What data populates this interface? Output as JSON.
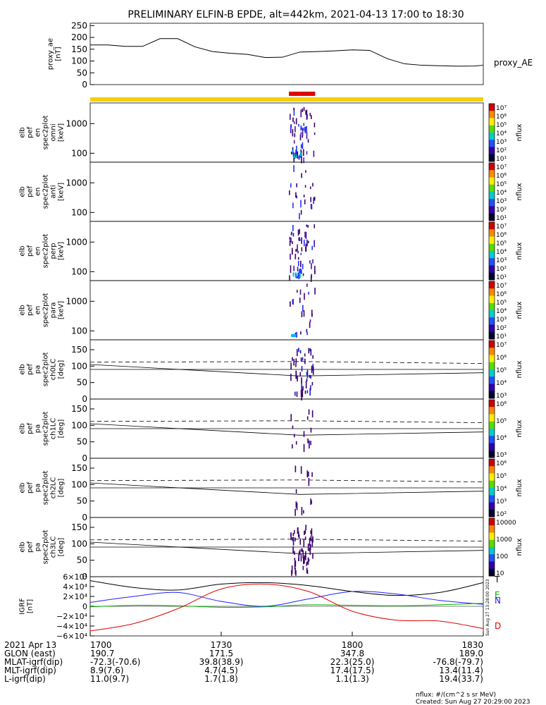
{
  "title": "PRELIMINARY ELFIN-B EPDE, alt=442km, 2021-04-13 17:00 to 18:30",
  "colors": {
    "status_bar": "#f5d000",
    "science_zone": "#e00000",
    "ae_line": "#000000",
    "grf_total": "#000000",
    "grf_n": "#2020ff",
    "grf_e": "#00b000",
    "grf_d": "#e00000"
  },
  "ae_panel": {
    "ylabel_lines": [
      "proxy_ae",
      "[nT]"
    ],
    "yticks": [
      "250",
      "200",
      "150",
      "100",
      "50",
      "0"
    ],
    "ylim": [
      0,
      260
    ],
    "legend": "proxy_AE"
  },
  "spec_panels": [
    {
      "ylabel_lines": [
        "elb",
        "pef",
        "en",
        "spec2plot",
        "omni",
        "[keV]"
      ],
      "yticks": [
        "1000",
        "100"
      ],
      "cbar_ticks": [
        "10⁷",
        "10⁶",
        "10⁵",
        "10⁴",
        "10³",
        "10²",
        "10¹"
      ],
      "cbar_label": "nflux"
    },
    {
      "ylabel_lines": [
        "elb",
        "pef",
        "en",
        "spec2plot",
        "anti",
        "[keV]"
      ],
      "yticks": [
        "1000",
        "100"
      ],
      "cbar_ticks": [
        "10⁷",
        "10⁶",
        "10⁵",
        "10⁴",
        "10³",
        "10²",
        "10¹"
      ],
      "cbar_label": "nflux"
    },
    {
      "ylabel_lines": [
        "elb",
        "pef",
        "en",
        "spec2plot",
        "perp",
        "[keV]"
      ],
      "yticks": [
        "1000",
        "100"
      ],
      "cbar_ticks": [
        "10⁷",
        "10⁶",
        "10⁵",
        "10⁴",
        "10³",
        "10²",
        "10¹"
      ],
      "cbar_label": "nflux"
    },
    {
      "ylabel_lines": [
        "elb",
        "pef",
        "en",
        "spec2plot",
        "para",
        "[keV]"
      ],
      "yticks": [
        "1000",
        "100"
      ],
      "cbar_ticks": [
        "10⁷",
        "10⁶",
        "10⁵",
        "10⁴",
        "10³",
        "10²",
        "10¹"
      ],
      "cbar_label": "nflux"
    }
  ],
  "pa_panels": [
    {
      "ylabel_lines": [
        "elb",
        "pef",
        "pa",
        "spec2plot",
        "ch0LC",
        "[deg]"
      ],
      "yticks": [
        "150",
        "100",
        "50",
        "0"
      ],
      "cbar_ticks": [
        "10⁷",
        "10⁶",
        "10⁵",
        "10⁴",
        "10³"
      ],
      "cbar_label": "nflux"
    },
    {
      "ylabel_lines": [
        "elb",
        "pef",
        "pa",
        "spec2plot",
        "ch1LC",
        "[deg]"
      ],
      "yticks": [
        "150",
        "100",
        "50",
        "0"
      ],
      "cbar_ticks": [
        "10⁶",
        "10⁵",
        "10⁴",
        "10³"
      ],
      "cbar_label": "nflux"
    },
    {
      "ylabel_lines": [
        "elb",
        "pef",
        "pa",
        "spec2plot",
        "ch2LC",
        "[deg]"
      ],
      "yticks": [
        "150",
        "100",
        "50",
        "0"
      ],
      "cbar_ticks": [
        "10⁶",
        "10⁵",
        "10⁴",
        "10³",
        "10²"
      ],
      "cbar_label": "nflux"
    },
    {
      "ylabel_lines": [
        "elb",
        "pef",
        "pa",
        "spec2plot",
        "ch3LC",
        "[deg]"
      ],
      "yticks": [
        "150",
        "100",
        "50",
        "0"
      ],
      "cbar_ticks": [
        "10000",
        "1000",
        "100",
        "10"
      ],
      "cbar_label": "nflux"
    }
  ],
  "grf_panel": {
    "ylabel_lines": [
      "IGRF",
      "[nT]"
    ],
    "yticks": [
      "6×10⁴",
      "4×10⁴",
      "2×10⁴",
      "0",
      "−2×10⁴",
      "−4×10⁴",
      "−6×10⁴"
    ],
    "legend": [
      "T",
      "E",
      "N",
      "D"
    ],
    "side_note": "Sun Aug 27 13:28:00 2023"
  },
  "footer": {
    "rows": [
      {
        "label": "2021 Apr 13",
        "values": [
          "1700",
          "1730",
          "1800",
          "1830"
        ]
      },
      {
        "label": "GLON (east)",
        "values": [
          "190.7",
          "171.5",
          "347.8",
          "189.0"
        ]
      },
      {
        "label": "MLAT-igrf(dip)",
        "values": [
          "-72.3(-70.6)",
          "39.8(38.9)",
          "22.3(25.0)",
          "-76.8(-79.7)"
        ]
      },
      {
        "label": "MLT-igrf(dip)",
        "values": [
          "8.9(7.6)",
          "4.7(4.5)",
          "17.4(17.5)",
          "13.4(11.4)"
        ]
      },
      {
        "label": "L-igrf(dip)",
        "values": [
          "11.0(9.7)",
          "1.7(1.8)",
          "1.1(1.3)",
          "19.4(33.7)"
        ]
      }
    ],
    "units_note": "nflux: #/(cm^2 s sr MeV)",
    "created_note": "Created: Sun Aug 27 20:29:00 2023"
  },
  "chart_data": {
    "type": "line",
    "title": "PRELIMINARY ELFIN-B EPDE, alt=442km, 2021-04-13 17:00 to 18:30",
    "x_ticks": [
      "1700",
      "1730",
      "1800",
      "1830"
    ],
    "x_range_minutes": [
      0,
      90
    ],
    "science_zone_minutes": [
      45.5,
      51.5
    ],
    "series": [
      {
        "name": "proxy_AE",
        "x": [
          0,
          4,
          8,
          12,
          16,
          20,
          24,
          28,
          32,
          36,
          40,
          44,
          48,
          52,
          56,
          60,
          64,
          68,
          72,
          76,
          80,
          84,
          88,
          90
        ],
        "values": [
          168,
          168,
          162,
          162,
          195,
          195,
          160,
          140,
          133,
          128,
          115,
          116,
          138,
          140,
          143,
          147,
          145,
          110,
          88,
          82,
          80,
          78,
          79,
          82
        ]
      }
    ],
    "ae_ylim": [
      0,
      260
    ],
    "grf_ylim": [
      -60000,
      60000
    ],
    "grf_series": [
      {
        "name": "T",
        "x": [
          0,
          10,
          20,
          30,
          40,
          50,
          60,
          70,
          80,
          90
        ],
        "values": [
          52000,
          38000,
          33000,
          45000,
          48000,
          42000,
          30000,
          22000,
          28000,
          48000
        ]
      },
      {
        "name": "N",
        "x": [
          0,
          10,
          20,
          30,
          40,
          50,
          60,
          70,
          80,
          90
        ],
        "values": [
          8000,
          20000,
          28000,
          10000,
          0,
          15000,
          30000,
          25000,
          12000,
          4000
        ]
      },
      {
        "name": "E",
        "x": [
          0,
          10,
          20,
          30,
          40,
          50,
          60,
          70,
          80,
          90
        ],
        "values": [
          -1000,
          2000,
          1000,
          -2000,
          -1000,
          3000,
          2000,
          1000,
          3000,
          6000
        ]
      },
      {
        "name": "D",
        "x": [
          0,
          10,
          20,
          30,
          40,
          50,
          60,
          70,
          80,
          90
        ],
        "values": [
          -50000,
          -35000,
          -5000,
          35000,
          45000,
          30000,
          -10000,
          -28000,
          -30000,
          -45000
        ]
      }
    ],
    "pa_lines": {
      "solid_start": 105,
      "solid_mid": 70,
      "solid_end": 80,
      "dashed_start": 112,
      "dashed_end": 108,
      "flat": 90
    },
    "spec_ylim_log": [
      50,
      5000
    ]
  }
}
